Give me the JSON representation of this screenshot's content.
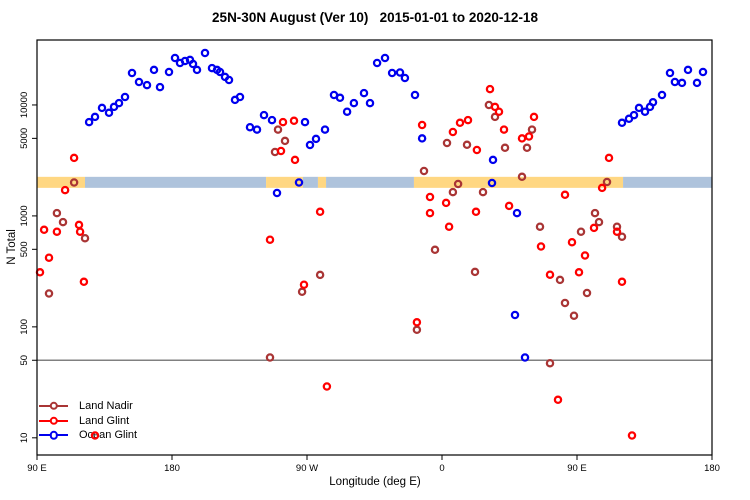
{
  "chart_data": {
    "type": "scatter",
    "title": "25N-30N August (Ver 10)   2015-01-01 to 2020-12-18",
    "xlabel": "Longitude (deg E)",
    "ylabel": "N Total",
    "y_scale": "log",
    "grid": false,
    "legend_position": "bottom-left",
    "x_range": [
      90,
      540
    ],
    "y_range": [
      7,
      38500
    ],
    "y_ticks": [
      10,
      50,
      100,
      500,
      1000,
      5000,
      10000
    ],
    "x_ticks": [
      {
        "pos": 90,
        "label": "90 E"
      },
      {
        "pos": 180,
        "label": "180"
      },
      {
        "pos": 270,
        "label": "90 W"
      },
      {
        "pos": 360,
        "label": "0"
      },
      {
        "pos": 450,
        "label": "90 E"
      },
      {
        "pos": 540,
        "label": "180"
      }
    ],
    "reference_line": {
      "value": 50,
      "color": "#808080"
    },
    "band_colors": {
      "orange": "#FFD782",
      "lightblue": "#AEC3DC"
    },
    "highlight_band": {
      "value_from": 1790,
      "value_to": 2250,
      "segments": [
        {
          "from": 90,
          "to": 122,
          "color": "orange"
        },
        {
          "from": 122,
          "to": 242.7,
          "color": "lightblue"
        },
        {
          "from": 242.7,
          "to": 267.3,
          "color": "orange"
        },
        {
          "from": 267.3,
          "to": 277.3,
          "color": "lightblue"
        },
        {
          "from": 277.3,
          "to": 282.7,
          "color": "orange"
        },
        {
          "from": 282.7,
          "to": 341.3,
          "color": "lightblue"
        },
        {
          "from": 341.3,
          "to": 480.7,
          "color": "orange"
        },
        {
          "from": 480.7,
          "to": 540,
          "color": "lightblue"
        }
      ]
    },
    "series": [
      {
        "name": "Land Nadir",
        "color": "#A93535",
        "points": [
          [
            114.7,
            2000
          ],
          [
            103.3,
            1060
          ],
          [
            107.3,
            880
          ],
          [
            122,
            630
          ],
          [
            98,
            200
          ],
          [
            250.7,
            6000
          ],
          [
            255.3,
            4740
          ],
          [
            248.7,
            3770
          ],
          [
            278.7,
            294
          ],
          [
            266.7,
            207
          ],
          [
            355.3,
            495
          ],
          [
            382,
            313
          ],
          [
            343.3,
            94
          ],
          [
            245.3,
            53
          ],
          [
            348,
            2540
          ],
          [
            363.3,
            4540
          ],
          [
            376.7,
            4370
          ],
          [
            370.7,
            1940
          ],
          [
            367.3,
            1640
          ],
          [
            387.3,
            1640
          ],
          [
            391.3,
            10000
          ],
          [
            395.3,
            7800
          ],
          [
            420,
            6000
          ],
          [
            416.7,
            4110
          ],
          [
            402,
            4110
          ],
          [
            413.3,
            2250
          ],
          [
            470,
            2020
          ],
          [
            425.3,
            800
          ],
          [
            462,
            1060
          ],
          [
            464.7,
            880
          ],
          [
            452.7,
            720
          ],
          [
            476.7,
            800
          ],
          [
            480,
            650
          ],
          [
            438.7,
            265
          ],
          [
            456.7,
            202
          ],
          [
            442,
            164
          ],
          [
            448,
            126
          ],
          [
            432,
            47
          ]
        ]
      },
      {
        "name": "Land Glint",
        "color": "#FF0000",
        "points": [
          [
            114.7,
            3330
          ],
          [
            108.7,
            1710
          ],
          [
            94.7,
            750
          ],
          [
            103.3,
            720
          ],
          [
            118,
            830
          ],
          [
            118.7,
            720
          ],
          [
            98,
            420
          ],
          [
            92,
            310
          ],
          [
            121.3,
            255
          ],
          [
            128.7,
            10.5
          ],
          [
            254,
            7000
          ],
          [
            261.3,
            7200
          ],
          [
            252.7,
            3850
          ],
          [
            262,
            3200
          ],
          [
            245.3,
            610
          ],
          [
            278.7,
            1090
          ],
          [
            283.3,
            29
          ],
          [
            268,
            240
          ],
          [
            343.3,
            110
          ],
          [
            346.7,
            6600
          ],
          [
            352,
            1480
          ],
          [
            362.7,
            1310
          ],
          [
            352,
            1060
          ],
          [
            382.7,
            1090
          ],
          [
            364.7,
            800
          ],
          [
            367.3,
            5700
          ],
          [
            372,
            6900
          ],
          [
            377.3,
            7300
          ],
          [
            383.3,
            3930
          ],
          [
            392,
            13900
          ],
          [
            395.3,
            9600
          ],
          [
            398,
            8700
          ],
          [
            401.3,
            6000
          ],
          [
            421.3,
            7800
          ],
          [
            413.3,
            5000
          ],
          [
            418,
            5200
          ],
          [
            471.3,
            3330
          ],
          [
            466.7,
            1790
          ],
          [
            442,
            1550
          ],
          [
            404.7,
            1230
          ],
          [
            437.3,
            22
          ],
          [
            486.7,
            10.5
          ],
          [
            461.3,
            780
          ],
          [
            426,
            530
          ],
          [
            446.7,
            580
          ],
          [
            455.3,
            440
          ],
          [
            476.7,
            720
          ],
          [
            432,
            295
          ],
          [
            451.3,
            310
          ],
          [
            480,
            255
          ]
        ]
      },
      {
        "name": "Ocean Glint",
        "color": "#0000EE",
        "points": [
          [
            124.7,
            7000
          ],
          [
            128.7,
            7800
          ],
          [
            133.3,
            9400
          ],
          [
            138,
            8500
          ],
          [
            141.3,
            9600
          ],
          [
            144.7,
            10400
          ],
          [
            148.7,
            11800
          ],
          [
            153.3,
            19400
          ],
          [
            158,
            16100
          ],
          [
            163.3,
            15100
          ],
          [
            168,
            20700
          ],
          [
            172,
            14500
          ],
          [
            178,
            19800
          ],
          [
            182,
            26500
          ],
          [
            185.3,
            23900
          ],
          [
            188.7,
            24900
          ],
          [
            192,
            25500
          ],
          [
            194,
            23400
          ],
          [
            196.7,
            20700
          ],
          [
            202,
            29400
          ],
          [
            206.7,
            21500
          ],
          [
            210,
            20700
          ],
          [
            212,
            19800
          ],
          [
            215.3,
            17900
          ],
          [
            218,
            16800
          ],
          [
            222,
            11100
          ],
          [
            225.3,
            11800
          ],
          [
            232,
            6300
          ],
          [
            236.7,
            6000
          ],
          [
            241.3,
            8100
          ],
          [
            246.7,
            7300
          ],
          [
            268.7,
            7000
          ],
          [
            272,
            4360
          ],
          [
            276,
            4940
          ],
          [
            282,
            6000
          ],
          [
            288,
            12300
          ],
          [
            292,
            11600
          ],
          [
            296.7,
            8700
          ],
          [
            301.3,
            10400
          ],
          [
            308,
            12800
          ],
          [
            312,
            10400
          ],
          [
            316.7,
            23900
          ],
          [
            322,
            26500
          ],
          [
            326.7,
            19400
          ],
          [
            332,
            19600
          ],
          [
            335.3,
            17500
          ],
          [
            342,
            12300
          ],
          [
            346.7,
            5000
          ],
          [
            394,
            3200
          ],
          [
            393.3,
            1980
          ],
          [
            264.7,
            2000
          ],
          [
            250,
            1610
          ],
          [
            410,
            1060
          ],
          [
            408.7,
            128
          ],
          [
            415.3,
            53
          ],
          [
            480,
            6900
          ],
          [
            484.7,
            7500
          ],
          [
            488,
            8100
          ],
          [
            491.3,
            9400
          ],
          [
            495.3,
            8700
          ],
          [
            498.7,
            9600
          ],
          [
            500.7,
            10600
          ],
          [
            506.7,
            12300
          ],
          [
            512,
            19400
          ],
          [
            515.3,
            16100
          ],
          [
            520,
            15800
          ],
          [
            524,
            20700
          ],
          [
            530,
            15800
          ],
          [
            534,
            19800
          ]
        ]
      }
    ],
    "marker": {
      "shape": "open-circle",
      "radius": 3.1,
      "stroke_width": 2.3
    }
  }
}
